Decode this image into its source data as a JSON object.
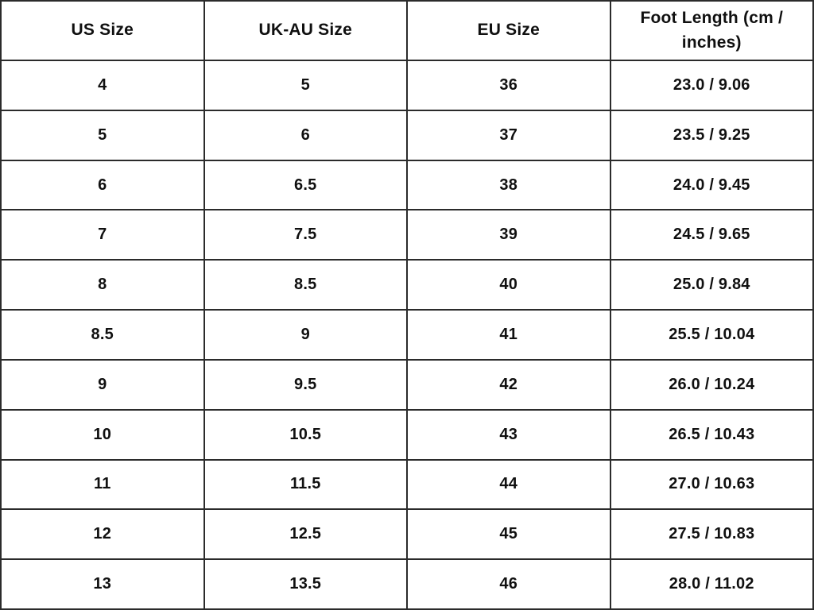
{
  "colors": {
    "border": "#2b2b2b",
    "text": "#101010",
    "background": "#ffffff"
  },
  "chart_data": {
    "type": "table",
    "title": "",
    "columns": [
      "US Size",
      "UK-AU Size",
      "EU Size",
      "Foot Length (cm / inches)"
    ],
    "rows": [
      [
        "4",
        "5",
        "36",
        "23.0 / 9.06"
      ],
      [
        "5",
        "6",
        "37",
        "23.5 / 9.25"
      ],
      [
        "6",
        "6.5",
        "38",
        "24.0 / 9.45"
      ],
      [
        "7",
        "7.5",
        "39",
        "24.5 / 9.65"
      ],
      [
        "8",
        "8.5",
        "40",
        "25.0 / 9.84"
      ],
      [
        "8.5",
        "9",
        "41",
        "25.5 / 10.04"
      ],
      [
        "9",
        "9.5",
        "42",
        "26.0 / 10.24"
      ],
      [
        "10",
        "10.5",
        "43",
        "26.5 / 10.43"
      ],
      [
        "11",
        "11.5",
        "44",
        "27.0 / 10.63"
      ],
      [
        "12",
        "12.5",
        "45",
        "27.5 / 10.83"
      ],
      [
        "13",
        "13.5",
        "46",
        "28.0 / 11.02"
      ]
    ]
  }
}
